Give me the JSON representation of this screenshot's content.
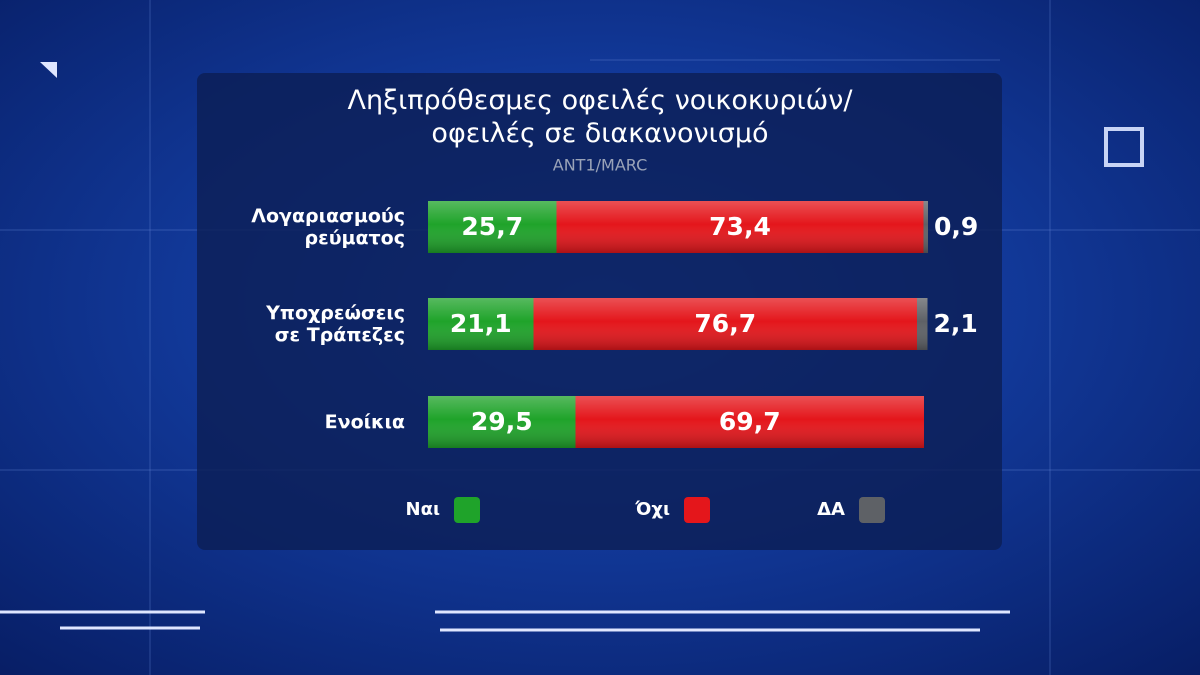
{
  "chart_data": {
    "type": "stacked-bar-horizontal",
    "title": "Ληξιπρόθεσμες οφειλές νοικοκυριών/ οφειλές σε διακανονισμό",
    "subtitle": "ANT1/MARC",
    "categories": [
      "Λογαριασμούς ρεύματος",
      "Υποχρεώσεις σε Τράπεζες",
      "Ενοίκια"
    ],
    "xlim": [
      0,
      100
    ],
    "series": [
      {
        "name": "Ναι",
        "color": "#1fa32a",
        "values": [
          25.7,
          21.1,
          29.5
        ],
        "value_labels": [
          "25,7",
          "21,1",
          "29,5"
        ]
      },
      {
        "name": "Όχι",
        "color": "#e4161b",
        "values": [
          73.4,
          76.7,
          69.7
        ],
        "value_labels": [
          "73,4",
          "76,7",
          "69,7"
        ]
      },
      {
        "name": "ΔΑ",
        "color": "#5e6166",
        "values": [
          0.9,
          2.1,
          null
        ],
        "value_labels": [
          "0,9",
          "2,1",
          null
        ]
      }
    ]
  }
}
